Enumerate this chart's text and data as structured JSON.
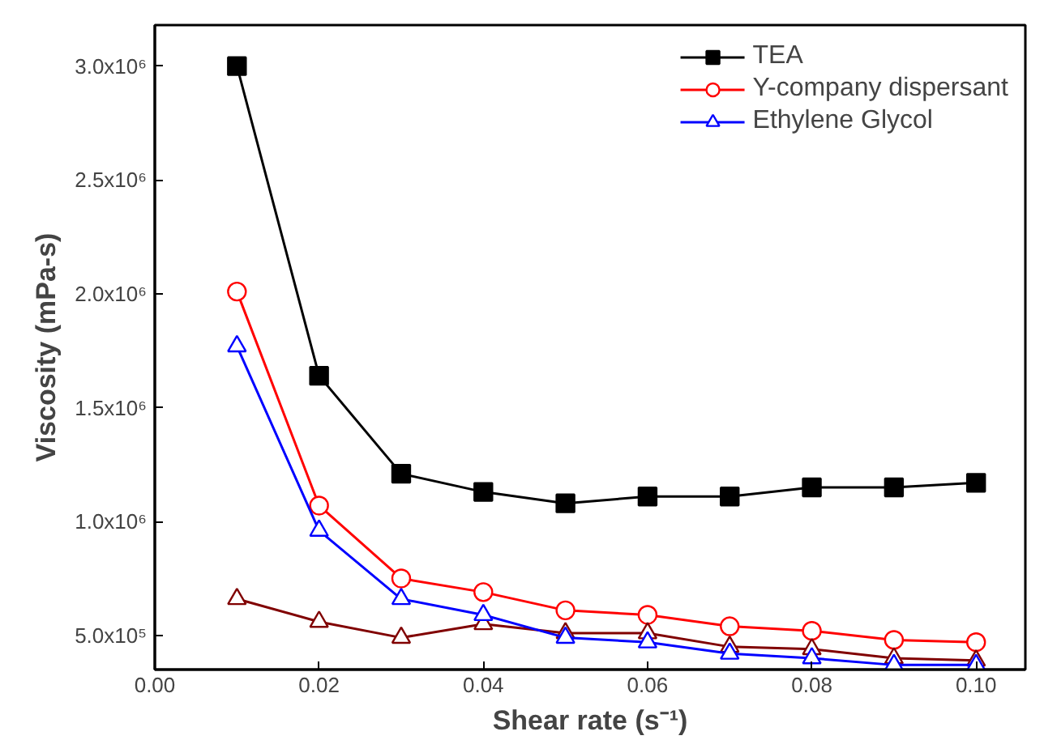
{
  "chart_data": {
    "type": "line",
    "xlabel": "Shear rate (s⁻¹)",
    "ylabel": "Viscosity (mPa-s)",
    "x": [
      0.01,
      0.02,
      0.03,
      0.04,
      0.05,
      0.06,
      0.07,
      0.08,
      0.09,
      0.1
    ],
    "xlim": [
      0,
      0.106
    ],
    "xticks": [
      {
        "value": 0,
        "label": "0.00"
      },
      {
        "value": 0.02,
        "label": "0.02"
      },
      {
        "value": 0.04,
        "label": "0.04"
      },
      {
        "value": 0.06,
        "label": "0.06"
      },
      {
        "value": 0.08,
        "label": "0.08"
      },
      {
        "value": 0.1,
        "label": "0.10"
      }
    ],
    "ylim": [
      350000,
      3180000
    ],
    "yticks": [
      {
        "value": 500000,
        "label": "5.0x10⁵"
      },
      {
        "value": 1000000,
        "label": "1.0x10⁶"
      },
      {
        "value": 1500000,
        "label": "1.5x10⁶"
      },
      {
        "value": 2000000,
        "label": "2.0x10⁶"
      },
      {
        "value": 2500000,
        "label": "2.5x10⁶"
      },
      {
        "value": 3000000,
        "label": "3.0x10⁶"
      }
    ],
    "grid": false,
    "legend": "top right",
    "line_style": "solid",
    "series": [
      {
        "name": "TEA",
        "color": "#000000",
        "marker": "square",
        "values": [
          3000000,
          1640000,
          1210000,
          1130000,
          1080000,
          1110000,
          1110000,
          1150000,
          1150000,
          1170000
        ]
      },
      {
        "name": "Y-company dispersant",
        "color": "#ff0000",
        "marker": "circle",
        "values": [
          2010000,
          1070000,
          750000,
          690000,
          610000,
          590000,
          540000,
          520000,
          480000,
          470000
        ]
      },
      {
        "color": "#800000",
        "marker": "triangle",
        "values": [
          660000,
          560000,
          490000,
          550000,
          510000,
          510000,
          450000,
          440000,
          400000,
          390000
        ]
      },
      {
        "name": "Ethylene Glycol",
        "color": "#0000ff",
        "marker": "triangle",
        "values": [
          1770000,
          960000,
          660000,
          590000,
          490000,
          470000,
          420000,
          400000,
          370000,
          370000
        ]
      }
    ]
  }
}
